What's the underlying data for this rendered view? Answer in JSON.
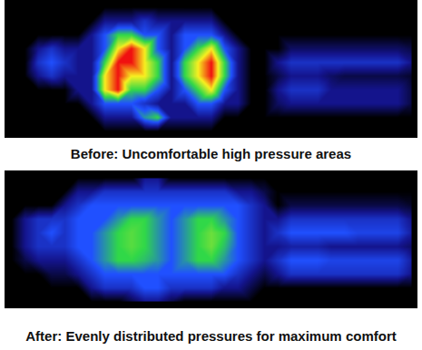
{
  "chart_data": [
    {
      "type": "heatmap",
      "caption": "Before: Uncomfortable high pressure areas",
      "zlim": [
        0,
        5
      ],
      "tick_labels": false,
      "cells": [
        [
          0,
          0,
          0,
          0,
          0,
          0,
          0,
          0,
          0,
          0,
          0,
          0,
          0,
          0,
          0,
          0,
          0,
          0,
          0,
          0,
          0,
          0,
          0,
          0,
          0,
          0,
          0,
          0,
          0,
          0,
          0
        ],
        [
          0,
          0,
          0,
          0,
          0,
          0,
          0,
          1,
          1,
          1,
          1.5,
          1,
          1,
          1,
          1,
          1,
          0,
          0,
          0,
          0,
          0,
          0,
          0,
          0,
          0,
          0,
          0,
          0,
          0,
          0,
          0
        ],
        [
          0,
          0,
          0,
          0,
          0,
          0,
          1,
          2,
          3,
          3,
          2,
          2,
          1,
          2,
          2,
          2,
          1,
          0,
          0,
          0,
          0,
          0,
          0,
          0,
          0,
          0,
          0,
          0,
          0,
          0,
          0
        ],
        [
          0,
          0,
          1,
          1.5,
          1,
          1,
          1,
          2,
          4,
          5,
          4,
          2,
          1,
          2,
          3,
          4,
          2,
          1,
          0,
          0,
          0,
          0.7,
          0.7,
          0.7,
          0.7,
          0.7,
          0.7,
          0.7,
          0.7,
          0.7,
          0.5
        ],
        [
          0,
          0,
          1.5,
          2,
          1.5,
          1,
          1,
          3,
          5,
          5,
          4,
          3,
          1,
          3,
          4,
          5,
          3,
          1,
          0,
          0,
          1,
          1.5,
          1.5,
          1.5,
          1.5,
          1.5,
          1.5,
          1.5,
          1.5,
          1.5,
          1
        ],
        [
          0,
          0,
          1,
          1.5,
          1,
          1,
          1,
          4,
          5,
          4,
          4,
          3,
          1,
          3,
          4,
          5,
          3,
          1,
          0,
          0,
          0.5,
          1,
          1,
          1,
          0.7,
          0.5,
          0.5,
          0.5,
          0.5,
          0.5,
          0.3
        ],
        [
          0,
          0,
          0,
          0,
          0,
          1,
          1,
          4,
          5,
          3,
          3,
          2,
          1,
          2,
          3,
          4,
          2,
          1,
          0,
          0,
          1,
          1.5,
          1.5,
          1.5,
          1,
          1,
          1,
          1,
          1,
          1,
          0.5
        ],
        [
          0,
          0,
          0,
          0,
          0,
          0,
          1,
          2,
          2,
          2,
          1.5,
          1,
          1,
          1,
          2,
          2,
          1,
          1,
          0,
          0,
          0.7,
          1,
          1,
          1,
          1,
          1,
          1,
          1,
          1,
          1,
          0.5
        ],
        [
          0,
          0,
          0,
          0,
          0,
          0,
          0,
          1,
          1,
          1,
          2.5,
          3,
          1,
          1,
          1,
          1,
          0,
          0,
          0,
          0,
          0,
          0,
          0,
          0,
          0,
          0,
          0,
          0,
          0,
          0,
          0
        ],
        [
          0,
          0,
          0,
          0,
          0,
          0,
          0,
          0,
          0,
          0,
          0,
          0,
          0,
          0,
          0,
          0,
          0,
          0,
          0,
          0,
          0,
          0,
          0,
          0,
          0,
          0,
          0,
          0,
          0,
          0,
          0
        ]
      ]
    },
    {
      "type": "heatmap",
      "caption": "After: Evenly distributed pressures for maximum comfort",
      "zlim": [
        0,
        5
      ],
      "tick_labels": false,
      "cells": [
        [
          0,
          0,
          0,
          0,
          0,
          0,
          0,
          0,
          0,
          0,
          1,
          1,
          0,
          0,
          0,
          0,
          0,
          0,
          0,
          0,
          0,
          0,
          0,
          0,
          0,
          0,
          0,
          0,
          0,
          0,
          0
        ],
        [
          0,
          0,
          0,
          0,
          0,
          1,
          1,
          1.5,
          1.5,
          1.5,
          1.5,
          1.5,
          1.5,
          1.5,
          1.5,
          1.5,
          1.5,
          1,
          1,
          0.5,
          0,
          0,
          0,
          0,
          0,
          0,
          0,
          0,
          0,
          0,
          0
        ],
        [
          0,
          0,
          0,
          0,
          1,
          1.5,
          2,
          2,
          2,
          2,
          2,
          2,
          2,
          2,
          2,
          2,
          2,
          2,
          1.5,
          1,
          0,
          0.5,
          0.5,
          0.5,
          0.5,
          0.5,
          0.5,
          0.5,
          0.5,
          0.5,
          0.3
        ],
        [
          0,
          1,
          1.5,
          1.5,
          1.5,
          2,
          2,
          2,
          2.5,
          3,
          3,
          2.5,
          2,
          2.5,
          3,
          3,
          2.5,
          2,
          1.5,
          1,
          1,
          1.5,
          1.5,
          1.5,
          1.5,
          1.5,
          1.5,
          1.5,
          1.5,
          1.5,
          1
        ],
        [
          0,
          1,
          1.5,
          2,
          1.5,
          2,
          2,
          2.5,
          3,
          3.2,
          3,
          2.5,
          2,
          2.5,
          3,
          3.3,
          3,
          2,
          1.5,
          1,
          1.5,
          2,
          2,
          2,
          2,
          2,
          1.8,
          1.8,
          1.8,
          1.8,
          1.2
        ],
        [
          0,
          1,
          1.5,
          1.5,
          1.5,
          2,
          2,
          2.5,
          3,
          3.2,
          3,
          2.5,
          2,
          2.5,
          3,
          3.3,
          2.8,
          2,
          1.5,
          1,
          1,
          1.2,
          1.2,
          1.2,
          1,
          1,
          1,
          1,
          1,
          1,
          0.7
        ],
        [
          0,
          0.5,
          1,
          1,
          1,
          1.5,
          2,
          2.5,
          3,
          3,
          2.8,
          2.5,
          2,
          2.5,
          3,
          3,
          2.5,
          2,
          1.5,
          1,
          1.5,
          2,
          2,
          2,
          1.8,
          1.8,
          1.8,
          1.8,
          1.8,
          1.8,
          1.2
        ],
        [
          0,
          0,
          0,
          0.5,
          0.5,
          1,
          1.5,
          2,
          2,
          2,
          2,
          2,
          2,
          2,
          2,
          2,
          2,
          1.5,
          1,
          0.5,
          1,
          1.5,
          1.5,
          1.5,
          1.5,
          1.5,
          1.5,
          1.5,
          1.5,
          1.5,
          1
        ],
        [
          0,
          0,
          0,
          0,
          0,
          0,
          1,
          1.5,
          1.5,
          1.5,
          2,
          2,
          1.5,
          1.5,
          1.5,
          1.5,
          1,
          1,
          0.5,
          0,
          0,
          0,
          0,
          0,
          0,
          0,
          0,
          0,
          0,
          0,
          0
        ],
        [
          0,
          0,
          0,
          0,
          0,
          0,
          0,
          0,
          0,
          0.5,
          1,
          1,
          0.5,
          0,
          0,
          0,
          0,
          0,
          0,
          0,
          0,
          0,
          0,
          0,
          0,
          0,
          0,
          0,
          0,
          0,
          0
        ]
      ]
    }
  ]
}
